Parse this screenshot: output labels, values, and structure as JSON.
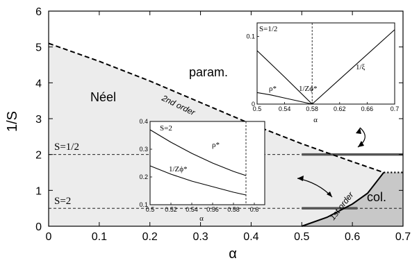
{
  "chart_data": {
    "type": "line",
    "title": "",
    "xlabel": "α",
    "ylabel": "1/S",
    "xlim": [
      0,
      0.7
    ],
    "ylim": [
      0,
      6
    ],
    "x_ticks": [
      "0",
      "0.1",
      "0.2",
      "0.3",
      "0.4",
      "0.5",
      "0.6",
      "0.7"
    ],
    "y_ticks": [
      "0",
      "1",
      "2",
      "3",
      "4",
      "5",
      "6"
    ],
    "regions": [
      {
        "label": "param.",
        "color": "#ffffff"
      },
      {
        "label": "Néel",
        "color": "#ececec"
      },
      {
        "label": "col.",
        "color": "#c8c8c8"
      }
    ],
    "boundaries": [
      {
        "name": "2nd order",
        "style": "dashed",
        "points": [
          [
            0,
            5.1
          ],
          [
            0.1,
            4.6
          ],
          [
            0.2,
            4.05
          ],
          [
            0.3,
            3.45
          ],
          [
            0.4,
            2.85
          ],
          [
            0.5,
            2.3
          ],
          [
            0.6,
            1.8
          ],
          [
            0.662,
            1.5
          ]
        ]
      },
      {
        "name": "1st order",
        "style": "solid",
        "points": [
          [
            0.5,
            0
          ],
          [
            0.55,
            0.25
          ],
          [
            0.6,
            0.62
          ],
          [
            0.63,
            0.92
          ],
          [
            0.662,
            1.5
          ]
        ]
      },
      {
        "name": "",
        "style": "dotted",
        "points": [
          [
            0.662,
            1.5
          ],
          [
            0.7,
            1.5
          ]
        ]
      }
    ],
    "levels": [
      {
        "label": "S=1/2",
        "y": 2.0,
        "segment_x": [
          0.5,
          0.7
        ]
      },
      {
        "label": "S=2",
        "y": 0.5,
        "segment_x": [
          0.5,
          0.61
        ]
      }
    ],
    "insets": [
      {
        "xlabel": "α",
        "xlim": [
          0.5,
          0.7
        ],
        "ylim": [
          0,
          0.12
        ],
        "x_ticks": [
          "0.5",
          "0.54",
          "0.58",
          "0.62",
          "0.66",
          "0.7"
        ],
        "y_ticks": [
          "0",
          "0.1"
        ],
        "legend": "S=1/2",
        "vline_x": 0.58,
        "series": [
          {
            "name": "ρ*",
            "x": [
              0.5,
              0.52,
              0.54,
              0.56,
              0.58
            ],
            "y": [
              0.017,
              0.0135,
              0.009,
              0.0045,
              0
            ]
          },
          {
            "name": "1/Zϕ*",
            "x": [
              0.5,
              0.54,
              0.58
            ],
            "y": [
              0.079,
              0.04,
              0
            ]
          },
          {
            "name": "1/ξ",
            "x": [
              0.58,
              0.7
            ],
            "y": [
              0,
              0.11
            ]
          }
        ]
      },
      {
        "xlabel": "α",
        "xlim": [
          0.5,
          0.61
        ],
        "ylim": [
          0.1,
          0.4
        ],
        "x_ticks": [
          "0.5",
          "0.52",
          "0.54",
          "0.56",
          "0.58",
          "0.6"
        ],
        "y_ticks": [
          "0.1",
          "0.2",
          "0.3",
          "0.4"
        ],
        "legend": "S=2",
        "vline_x": 0.592,
        "series": [
          {
            "name": "ρ*",
            "x": [
              0.5,
              0.52,
              0.54,
              0.56,
              0.58,
              0.592
            ],
            "y": [
              0.37,
              0.325,
              0.285,
              0.25,
              0.22,
              0.205
            ]
          },
          {
            "name": "1/Zϕ*",
            "x": [
              0.5,
              0.52,
              0.54,
              0.56,
              0.58,
              0.592
            ],
            "y": [
              0.24,
              0.21,
              0.185,
              0.165,
              0.145,
              0.135
            ]
          }
        ]
      }
    ]
  }
}
